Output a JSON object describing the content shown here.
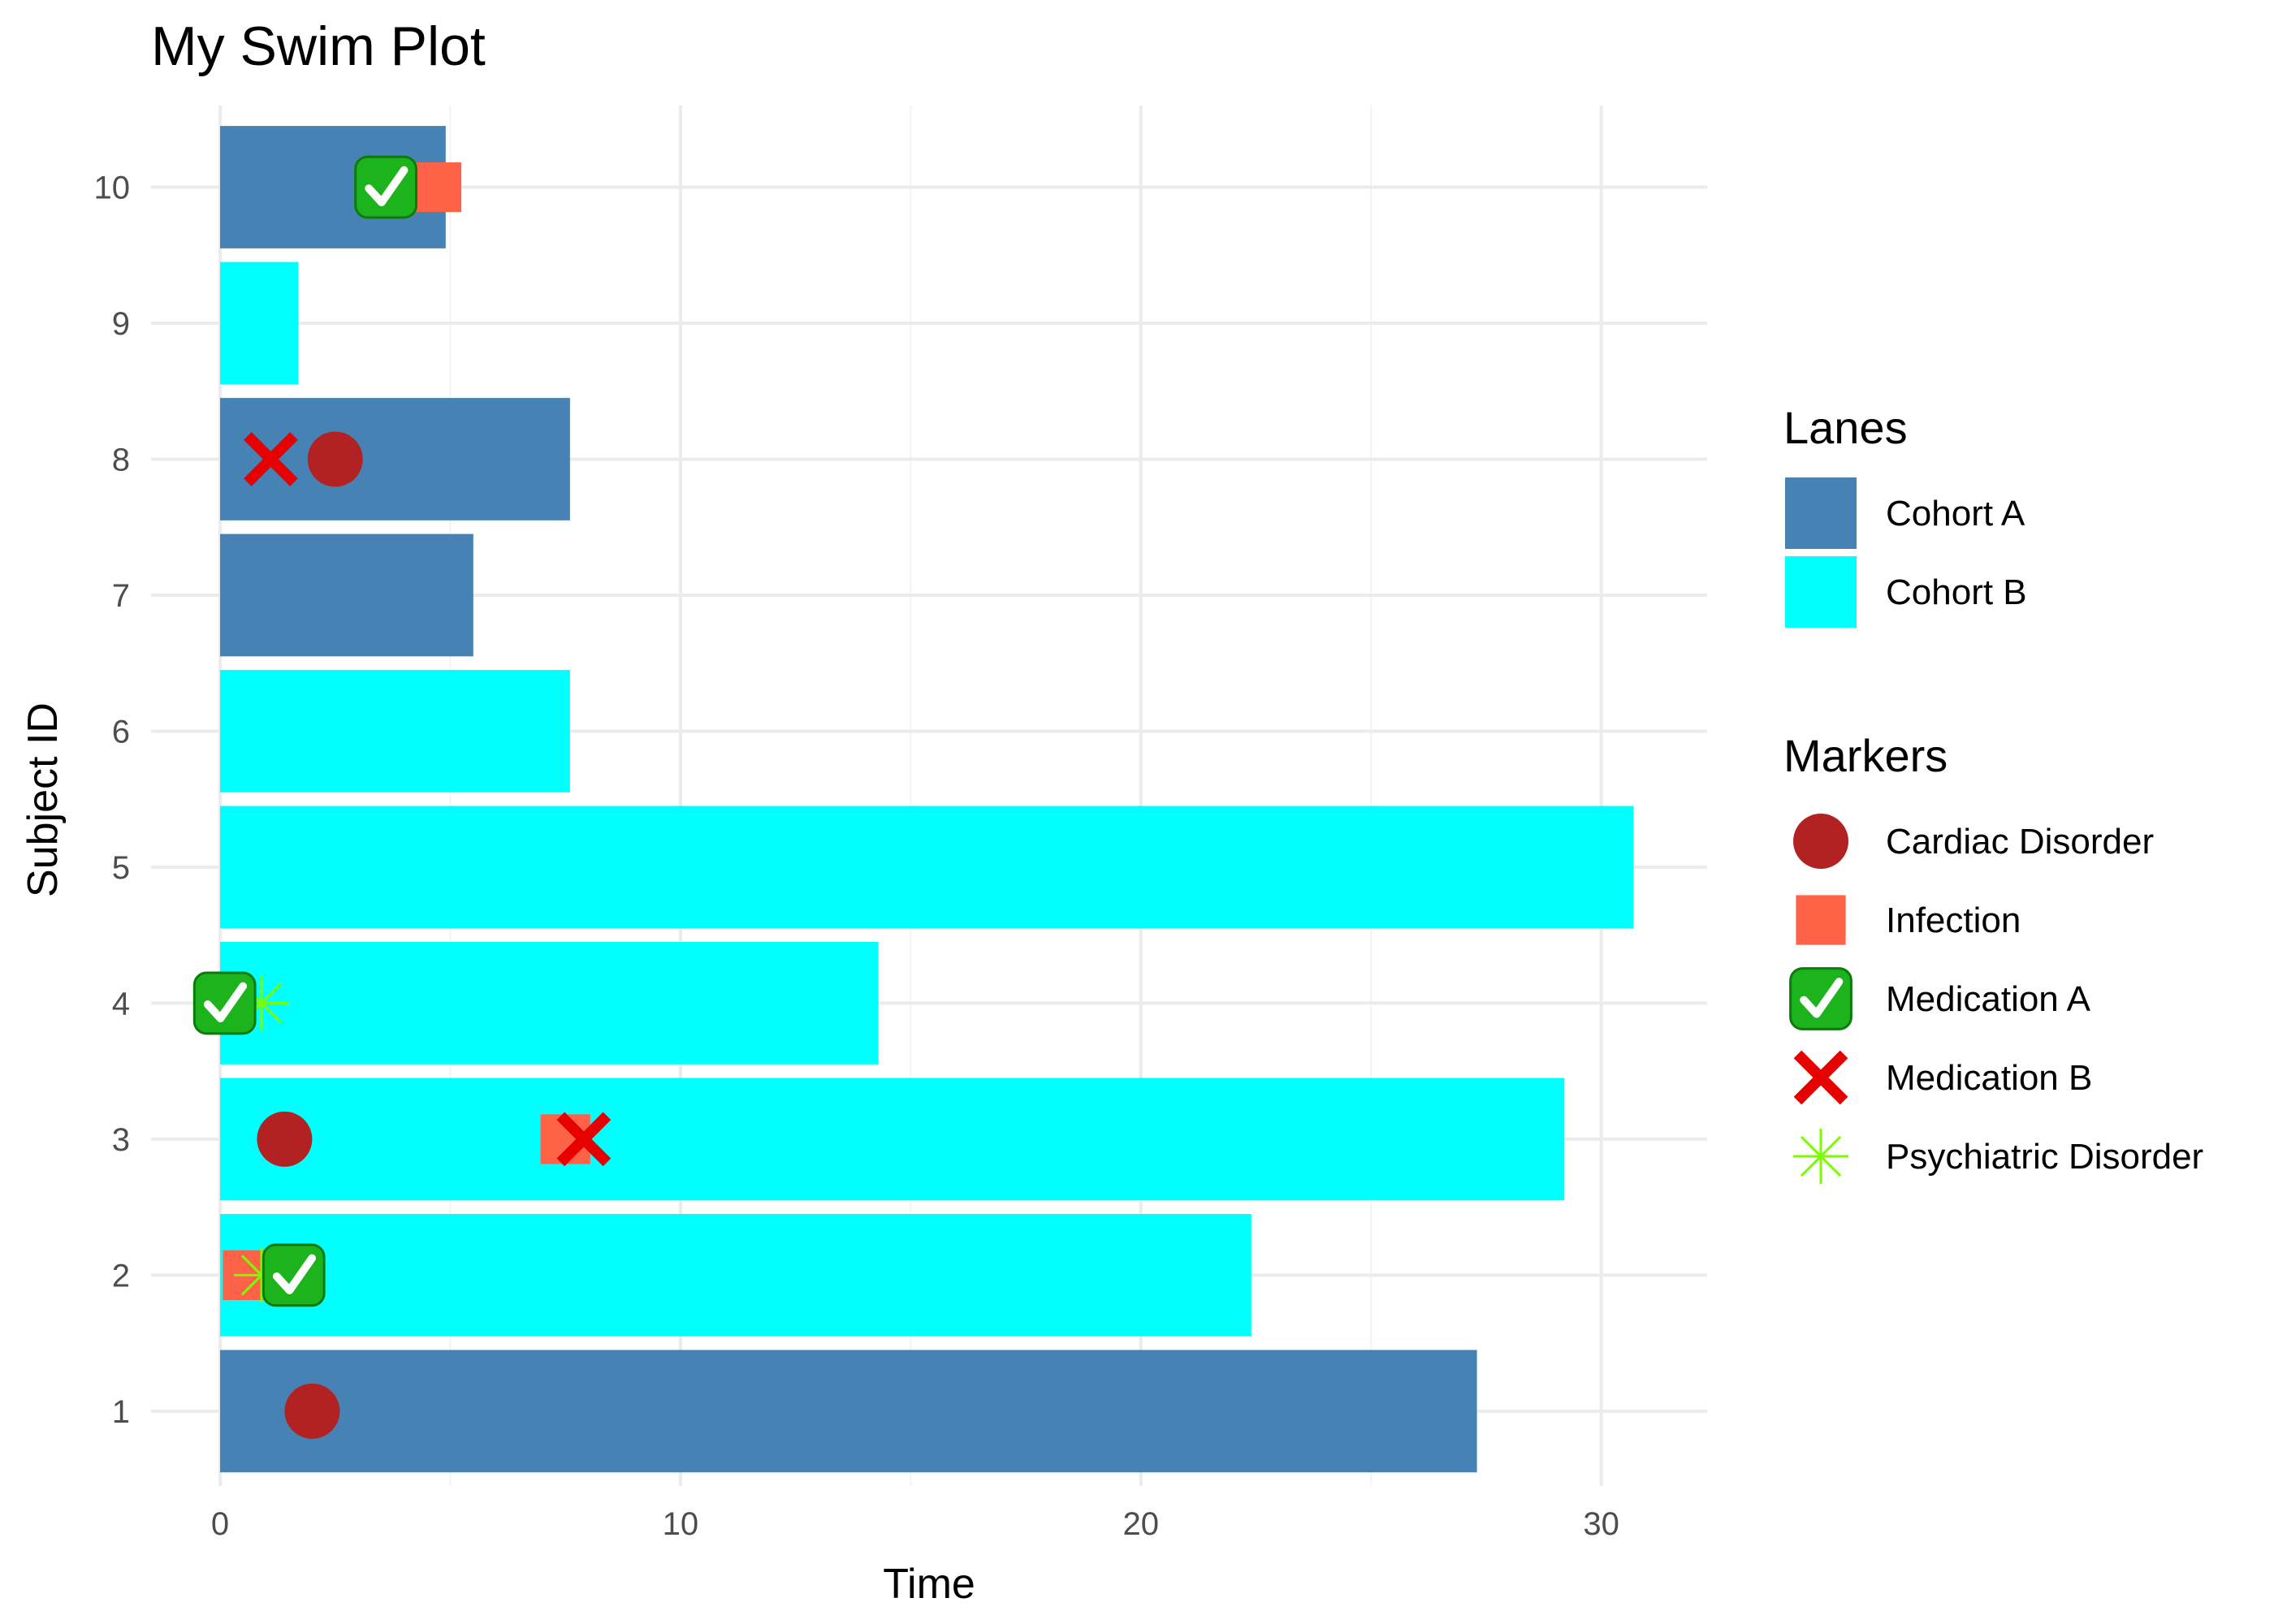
{
  "chart_data": {
    "type": "swimmer",
    "title": "My Swim Plot",
    "xlabel": "Time",
    "ylabel": "Subject ID",
    "xlim": [
      -1.5,
      32.3
    ],
    "ylim": [
      0.45,
      10.6
    ],
    "x_ticks": [
      0,
      10,
      20,
      30
    ],
    "x_minor_ticks": [
      5,
      15,
      25
    ],
    "y_ticks": [
      1,
      2,
      3,
      4,
      5,
      6,
      7,
      8,
      9,
      10
    ],
    "y_tick_labels": [
      "1",
      "2",
      "3",
      "4",
      "5",
      "6",
      "7",
      "8",
      "9",
      "10"
    ],
    "grid": true,
    "legend_position": "right",
    "lanes": [
      {
        "subject": 1,
        "end": 27.3,
        "cohort": "Cohort A"
      },
      {
        "subject": 2,
        "end": 22.4,
        "cohort": "Cohort B"
      },
      {
        "subject": 3,
        "end": 29.2,
        "cohort": "Cohort B"
      },
      {
        "subject": 4,
        "end": 14.3,
        "cohort": "Cohort B"
      },
      {
        "subject": 5,
        "end": 30.7,
        "cohort": "Cohort B"
      },
      {
        "subject": 6,
        "end": 7.6,
        "cohort": "Cohort B"
      },
      {
        "subject": 7,
        "end": 5.5,
        "cohort": "Cohort A"
      },
      {
        "subject": 8,
        "end": 7.6,
        "cohort": "Cohort A"
      },
      {
        "subject": 9,
        "end": 1.7,
        "cohort": "Cohort B"
      },
      {
        "subject": 10,
        "end": 4.9,
        "cohort": "Cohort A"
      }
    ],
    "events": [
      {
        "subject": 10,
        "time": 4.7,
        "marker": "Infection"
      },
      {
        "subject": 10,
        "time": 3.6,
        "marker": "Medication A"
      },
      {
        "subject": 8,
        "time": 1.1,
        "marker": "Medication B"
      },
      {
        "subject": 8,
        "time": 2.5,
        "marker": "Cardiac Disorder"
      },
      {
        "subject": 4,
        "time": 0.9,
        "marker": "Psychiatric Disorder"
      },
      {
        "subject": 4,
        "time": 0.1,
        "marker": "Medication A"
      },
      {
        "subject": 3,
        "time": 1.4,
        "marker": "Cardiac Disorder"
      },
      {
        "subject": 3,
        "time": 7.5,
        "marker": "Infection"
      },
      {
        "subject": 3,
        "time": 7.9,
        "marker": "Medication B"
      },
      {
        "subject": 2,
        "time": 0.6,
        "marker": "Infection"
      },
      {
        "subject": 2,
        "time": 0.9,
        "marker": "Psychiatric Disorder"
      },
      {
        "subject": 2,
        "time": 1.6,
        "marker": "Medication A"
      },
      {
        "subject": 1,
        "time": 2.0,
        "marker": "Cardiac Disorder"
      }
    ],
    "legend": {
      "lanes_title": "Lanes",
      "lanes": [
        {
          "name": "Cohort A",
          "color": "#4682B4"
        },
        {
          "name": "Cohort B",
          "color": "#00FFFF"
        }
      ],
      "markers_title": "Markers",
      "markers": [
        {
          "name": "Cardiac Disorder",
          "shape": "circle",
          "color": "#B22222"
        },
        {
          "name": "Infection",
          "shape": "square",
          "color": "#FF6347"
        },
        {
          "name": "Medication A",
          "shape": "check-emoji",
          "color": "#1DB31D"
        },
        {
          "name": "Medication B",
          "shape": "cross",
          "color": "#E60000"
        },
        {
          "name": "Psychiatric Disorder",
          "shape": "asterisk",
          "color": "#7CFC00"
        }
      ]
    }
  }
}
